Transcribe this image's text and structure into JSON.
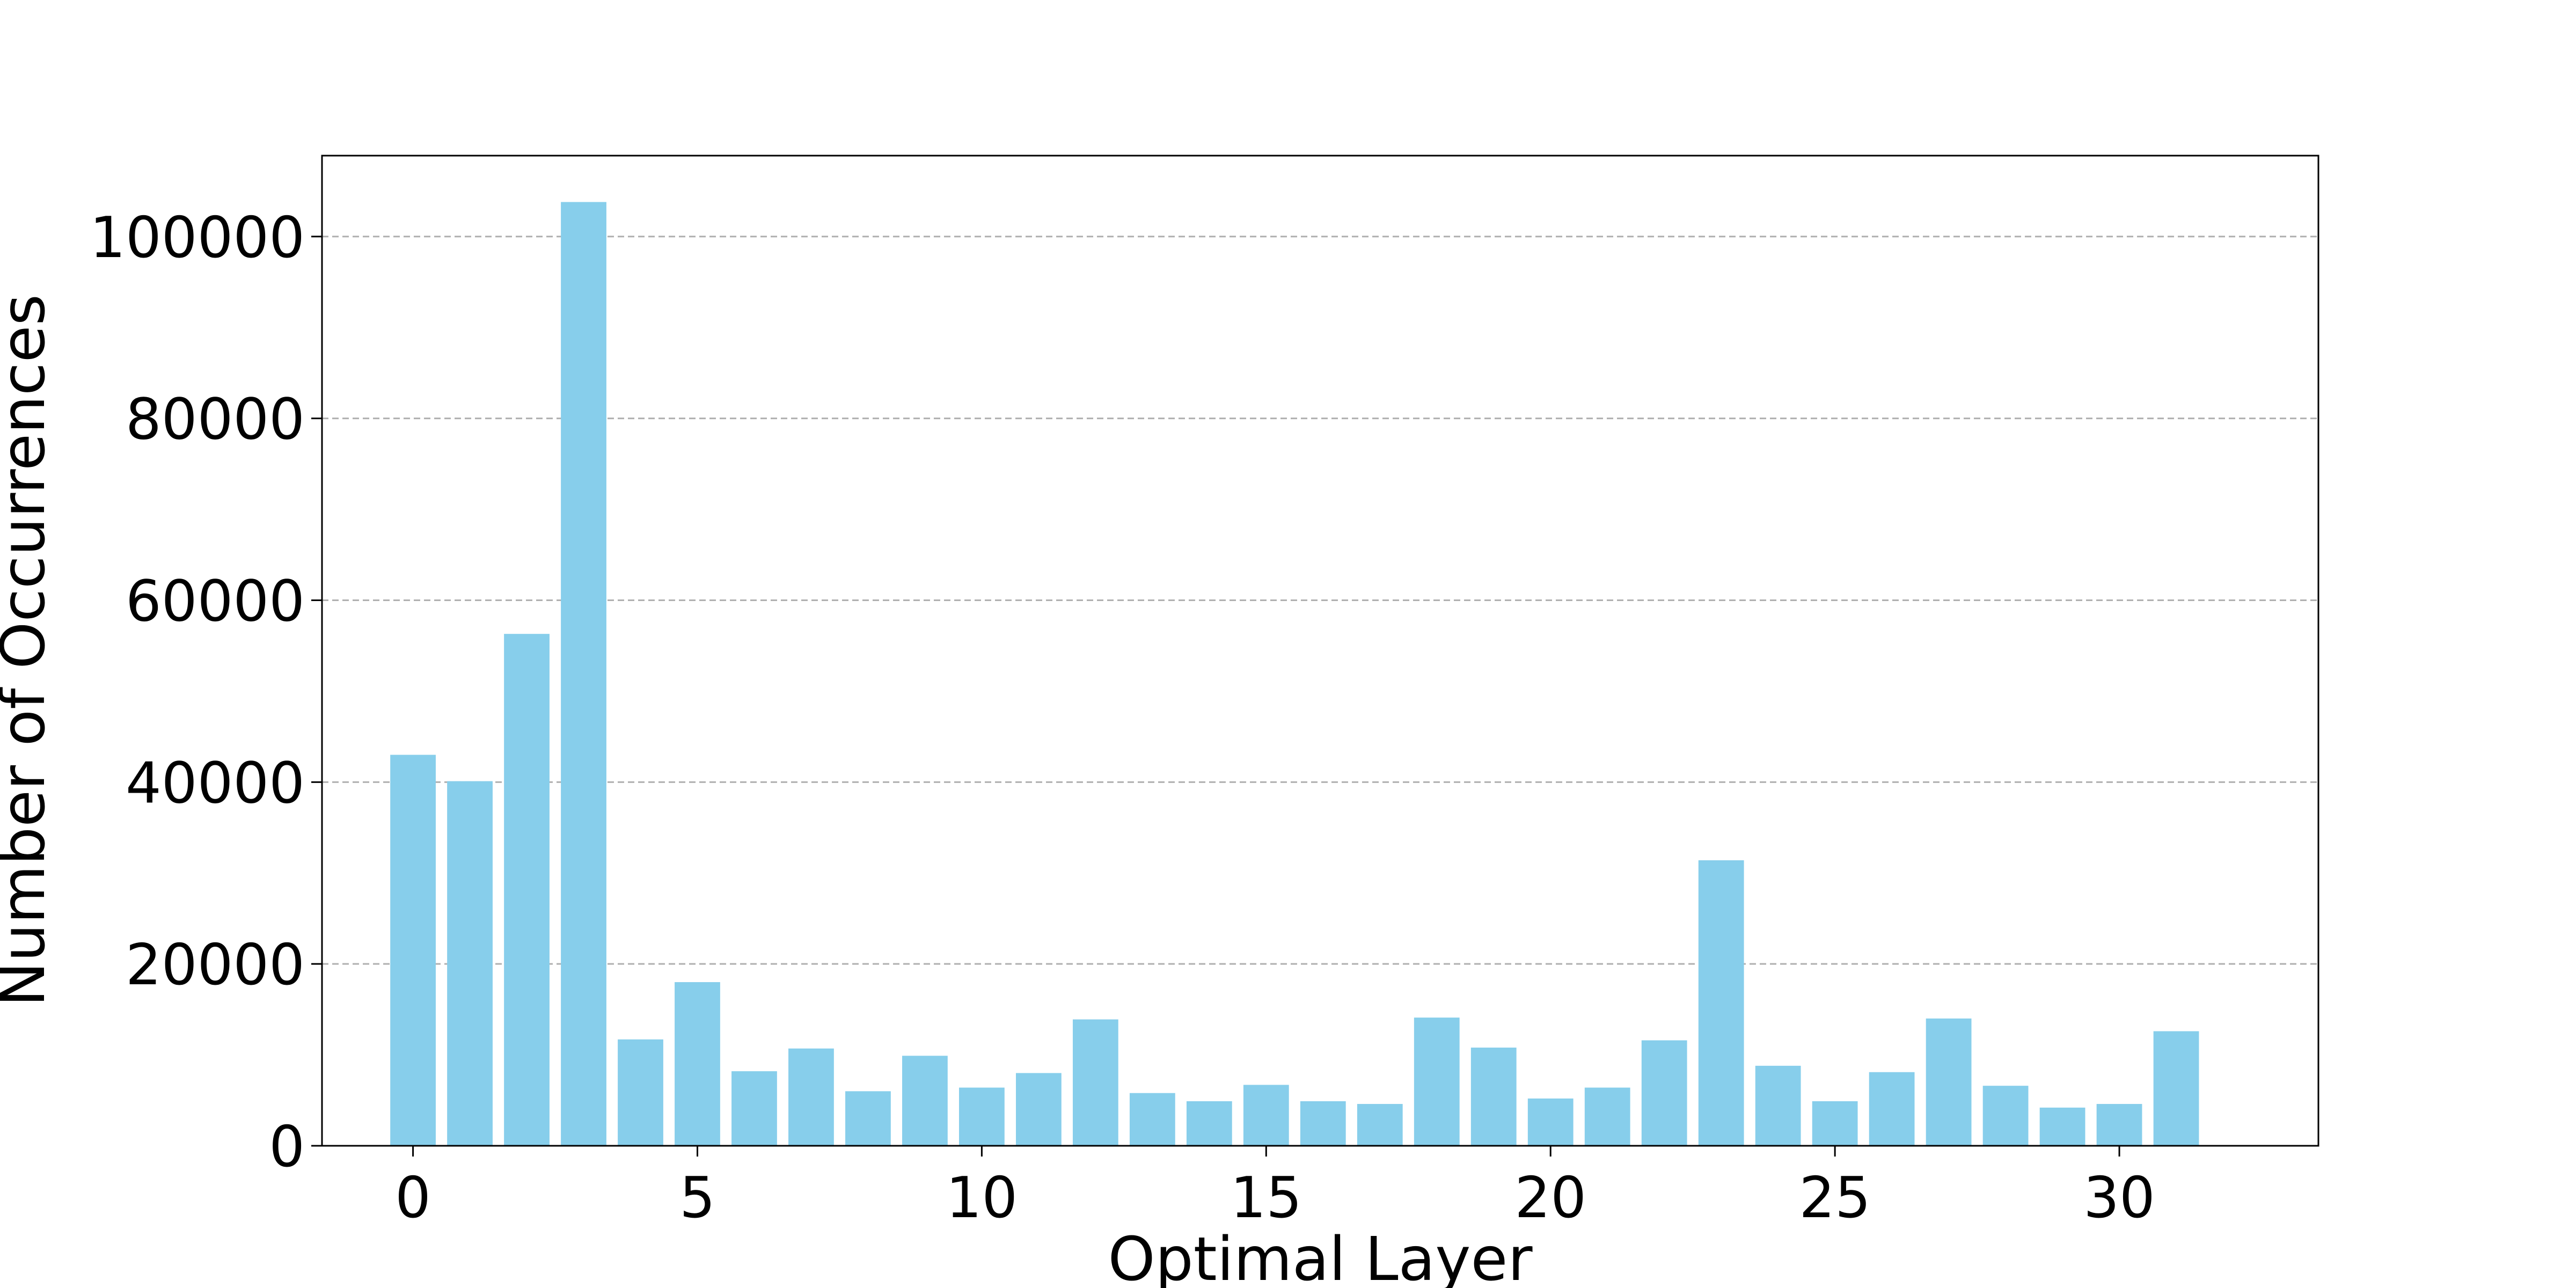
{
  "colors": {
    "bar": "#87ceeb",
    "grid": "#b0b0b0",
    "axis": "#000000"
  },
  "chart_data": {
    "type": "bar",
    "title": "",
    "xlabel": "Optimal Layer",
    "ylabel": "Number of Occurrences",
    "grid": "y-dashed",
    "categories": [
      0,
      1,
      2,
      3,
      4,
      5,
      6,
      7,
      8,
      9,
      10,
      11,
      12,
      13,
      14,
      15,
      16,
      17,
      18,
      19,
      20,
      21,
      22,
      23,
      24,
      25,
      26,
      27,
      28,
      29,
      30,
      31
    ],
    "values": [
      43000,
      40100,
      56300,
      103800,
      11700,
      18000,
      8200,
      10700,
      6000,
      9900,
      6400,
      8000,
      13900,
      5800,
      4900,
      6700,
      4900,
      4600,
      14100,
      10800,
      5200,
      6400,
      11600,
      31400,
      8800,
      4900,
      8100,
      14000,
      6600,
      4200,
      4600,
      12600
    ],
    "xlim": [
      -1.6,
      33.5
    ],
    "ylim": [
      0,
      108900
    ],
    "xticks": [
      0,
      5,
      10,
      15,
      20,
      25,
      30
    ],
    "yticks": [
      0,
      20000,
      40000,
      60000,
      80000,
      100000
    ],
    "xtick_labels": [
      "0",
      "5",
      "10",
      "15",
      "20",
      "25",
      "30"
    ],
    "ytick_labels": [
      "0",
      "20000",
      "40000",
      "60000",
      "80000",
      "100000"
    ]
  }
}
